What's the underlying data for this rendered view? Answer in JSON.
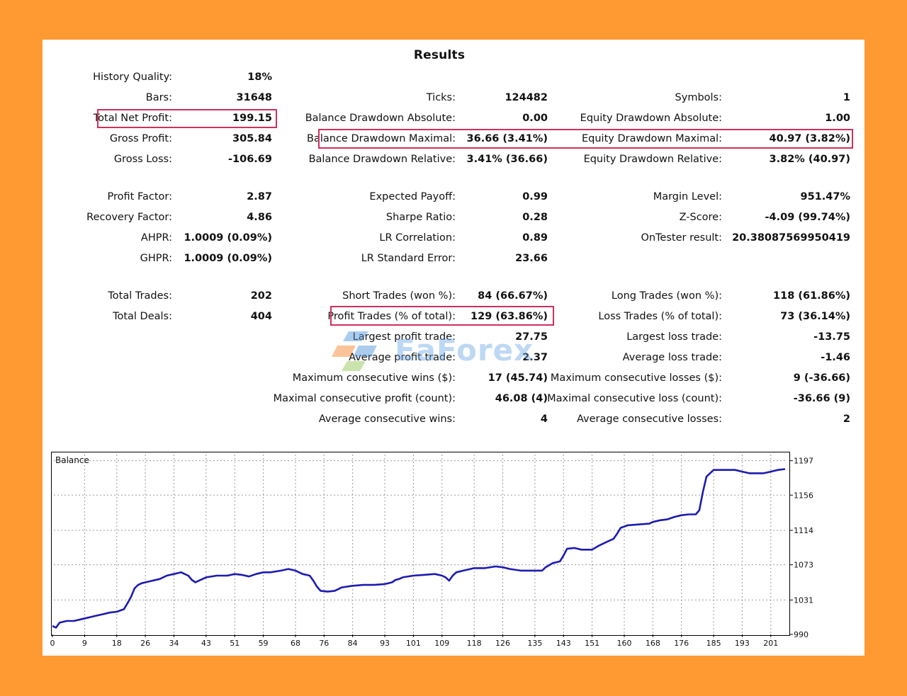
{
  "report": {
    "title": "Results",
    "col1": [
      {
        "label": "History Quality:",
        "value": "18%"
      },
      {
        "label": "Bars:",
        "value": "31648"
      },
      {
        "label": "Total Net Profit:",
        "value": "199.15"
      },
      {
        "label": "Gross Profit:",
        "value": "305.84"
      },
      {
        "label": "Gross Loss:",
        "value": "-106.69"
      },
      {
        "label": "Profit Factor:",
        "value": "2.87"
      },
      {
        "label": "Recovery Factor:",
        "value": "4.86"
      },
      {
        "label": "AHPR:",
        "value": "1.0009 (0.09%)"
      },
      {
        "label": "GHPR:",
        "value": "1.0009 (0.09%)"
      },
      {
        "label": "Total Trades:",
        "value": "202"
      },
      {
        "label": "Total Deals:",
        "value": "404"
      }
    ],
    "col2": [
      {
        "label": "Ticks:",
        "value": "124482"
      },
      {
        "label": "Balance Drawdown Absolute:",
        "value": "0.00"
      },
      {
        "label": "Balance Drawdown Maximal:",
        "value": "36.66 (3.41%)"
      },
      {
        "label": "Balance Drawdown Relative:",
        "value": "3.41% (36.66)"
      },
      {
        "label": "Expected Payoff:",
        "value": "0.99"
      },
      {
        "label": "Sharpe Ratio:",
        "value": "0.28"
      },
      {
        "label": "LR Correlation:",
        "value": "0.89"
      },
      {
        "label": "LR Standard Error:",
        "value": "23.66"
      },
      {
        "label": "Short Trades (won %):",
        "value": "84 (66.67%)"
      },
      {
        "label": "Profit Trades (% of total):",
        "value": "129 (63.86%)"
      },
      {
        "label": "Largest profit trade:",
        "value": "27.75"
      },
      {
        "label": "Average profit trade:",
        "value": "2.37"
      },
      {
        "label": "Maximum consecutive wins ($):",
        "value": "17 (45.74)"
      },
      {
        "label": "Maximal consecutive profit (count):",
        "value": "46.08 (4)"
      },
      {
        "label": "Average consecutive wins:",
        "value": "4"
      }
    ],
    "col3": [
      {
        "label": "Symbols:",
        "value": "1"
      },
      {
        "label": "Equity Drawdown Absolute:",
        "value": "1.00"
      },
      {
        "label": "Equity Drawdown Maximal:",
        "value": "40.97 (3.82%)"
      },
      {
        "label": "Equity Drawdown Relative:",
        "value": "3.82% (40.97)"
      },
      {
        "label": "Margin Level:",
        "value": "951.47%"
      },
      {
        "label": "Z-Score:",
        "value": "-4.09 (99.74%)"
      },
      {
        "label": "OnTester result:",
        "value": "20.38087569950419"
      },
      {
        "label": "Long Trades (won %):",
        "value": "118 (61.86%)"
      },
      {
        "label": "Loss Trades (% of total):",
        "value": "73 (36.14%)"
      },
      {
        "label": "Largest loss trade:",
        "value": "-13.75"
      },
      {
        "label": "Average loss trade:",
        "value": "-1.46"
      },
      {
        "label": "Maximum consecutive losses ($):",
        "value": "9 (-36.66)"
      },
      {
        "label": "Maximal consecutive loss (count):",
        "value": "-36.66 (9)"
      },
      {
        "label": "Average consecutive losses:",
        "value": "2"
      }
    ]
  },
  "watermark": {
    "text": "EaForex",
    "icon": "eaforex-logo-icon"
  },
  "colors": {
    "background": "#FF9A33",
    "highlight": "#D0305A",
    "line": "#1C1CB0"
  },
  "chart_data": {
    "type": "line",
    "title": "Balance",
    "x_ticks": [
      0,
      9,
      18,
      26,
      34,
      43,
      51,
      59,
      68,
      76,
      84,
      93,
      101,
      109,
      118,
      126,
      135,
      143,
      151,
      160,
      168,
      176,
      185,
      193,
      201
    ],
    "y_ticks": [
      990,
      1031,
      1073,
      1114,
      1156,
      1197
    ],
    "xlim": [
      0,
      206
    ],
    "ylim": [
      990,
      1206
    ],
    "series": [
      {
        "name": "Balance",
        "points": [
          [
            0,
            1000
          ],
          [
            1,
            998
          ],
          [
            2,
            1004
          ],
          [
            4,
            1006
          ],
          [
            6,
            1006
          ],
          [
            8,
            1008
          ],
          [
            10,
            1010
          ],
          [
            12,
            1012
          ],
          [
            14,
            1014
          ],
          [
            16,
            1016
          ],
          [
            18,
            1017
          ],
          [
            20,
            1020
          ],
          [
            21,
            1027
          ],
          [
            22,
            1035
          ],
          [
            23,
            1045
          ],
          [
            24,
            1049
          ],
          [
            25,
            1051
          ],
          [
            26,
            1052
          ],
          [
            28,
            1054
          ],
          [
            30,
            1056
          ],
          [
            32,
            1060
          ],
          [
            34,
            1062
          ],
          [
            35,
            1063
          ],
          [
            36,
            1064
          ],
          [
            37,
            1062
          ],
          [
            38,
            1060
          ],
          [
            39,
            1055
          ],
          [
            40,
            1052
          ],
          [
            41,
            1054
          ],
          [
            43,
            1058
          ],
          [
            46,
            1060
          ],
          [
            49,
            1060
          ],
          [
            51,
            1062
          ],
          [
            53,
            1061
          ],
          [
            55,
            1059
          ],
          [
            57,
            1062
          ],
          [
            59,
            1064
          ],
          [
            61,
            1064
          ],
          [
            64,
            1066
          ],
          [
            66,
            1068
          ],
          [
            68,
            1066
          ],
          [
            70,
            1062
          ],
          [
            72,
            1060
          ],
          [
            73,
            1054
          ],
          [
            74,
            1047
          ],
          [
            75,
            1042
          ],
          [
            77,
            1041
          ],
          [
            79,
            1042
          ],
          [
            81,
            1046
          ],
          [
            84,
            1048
          ],
          [
            87,
            1049
          ],
          [
            90,
            1049
          ],
          [
            93,
            1050
          ],
          [
            95,
            1052
          ],
          [
            96,
            1055
          ],
          [
            97,
            1056
          ],
          [
            98,
            1058
          ],
          [
            101,
            1060
          ],
          [
            104,
            1061
          ],
          [
            107,
            1062
          ],
          [
            109,
            1060
          ],
          [
            110,
            1058
          ],
          [
            111,
            1054
          ],
          [
            112,
            1060
          ],
          [
            113,
            1064
          ],
          [
            115,
            1066
          ],
          [
            118,
            1069
          ],
          [
            121,
            1069
          ],
          [
            124,
            1071
          ],
          [
            126,
            1070
          ],
          [
            128,
            1068
          ],
          [
            131,
            1066
          ],
          [
            133,
            1066
          ],
          [
            135,
            1066
          ],
          [
            137,
            1066
          ],
          [
            138,
            1070
          ],
          [
            140,
            1075
          ],
          [
            142,
            1077
          ],
          [
            143,
            1084
          ],
          [
            144,
            1092
          ],
          [
            146,
            1093
          ],
          [
            148,
            1091
          ],
          [
            151,
            1091
          ],
          [
            153,
            1096
          ],
          [
            155,
            1100
          ],
          [
            157,
            1104
          ],
          [
            158,
            1110
          ],
          [
            159,
            1117
          ],
          [
            161,
            1120
          ],
          [
            164,
            1121
          ],
          [
            167,
            1122
          ],
          [
            168,
            1124
          ],
          [
            170,
            1126
          ],
          [
            172,
            1127
          ],
          [
            174,
            1130
          ],
          [
            176,
            1132
          ],
          [
            178,
            1133
          ],
          [
            180,
            1133
          ],
          [
            181,
            1138
          ],
          [
            182,
            1160
          ],
          [
            183,
            1178
          ],
          [
            185,
            1186
          ],
          [
            187,
            1186
          ],
          [
            189,
            1186
          ],
          [
            191,
            1186
          ],
          [
            193,
            1184
          ],
          [
            195,
            1182
          ],
          [
            197,
            1182
          ],
          [
            199,
            1182
          ],
          [
            201,
            1184
          ],
          [
            203,
            1186
          ],
          [
            205,
            1187
          ]
        ]
      }
    ]
  }
}
